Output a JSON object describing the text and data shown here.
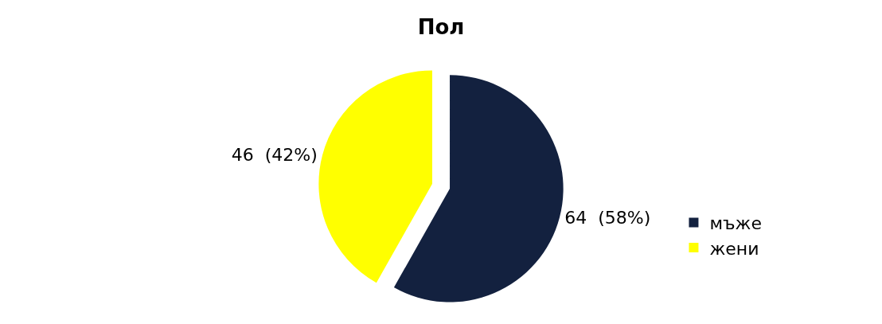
{
  "chart_data": {
    "type": "pie",
    "title": "Пол",
    "categories": [
      "мъже",
      "жени"
    ],
    "values": [
      64,
      46
    ],
    "value_labels": [
      "64  (58%)",
      "46  (42%)"
    ],
    "colors": [
      "#13213f",
      "#ffff00"
    ],
    "legend": "right"
  }
}
